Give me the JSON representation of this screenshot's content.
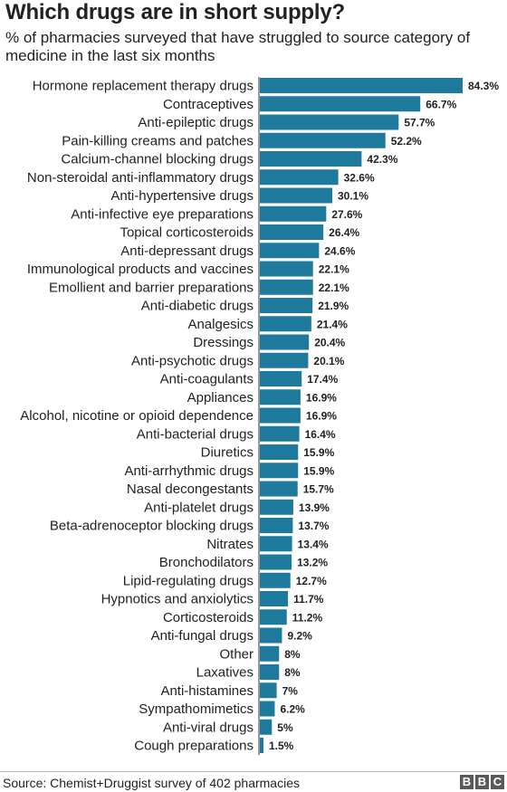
{
  "title": "Which drugs are in short supply?",
  "subtitle": "% of pharmacies surveyed that have struggled to source category of medicine in the last six months",
  "source": "Source: Chemist+Druggist survey of 402 pharmacies",
  "logo": [
    "B",
    "B",
    "C"
  ],
  "colors": {
    "bar": "#1d7a9c",
    "text": "#222222"
  },
  "chart_data": {
    "type": "bar",
    "orientation": "horizontal",
    "value_suffix": "%",
    "xlim": [
      0,
      84.3
    ],
    "categories": [
      "Hormone replacement therapy drugs",
      "Contraceptives",
      "Anti-epileptic drugs",
      "Pain-killing creams and patches",
      "Calcium-channel blocking drugs",
      "Non-steroidal anti-inflammatory drugs",
      "Anti-hypertensive drugs",
      "Anti-infective eye preparations",
      "Topical corticosteroids",
      "Anti-depressant drugs",
      "Immunological products and vaccines",
      "Emollient and barrier preparations",
      "Anti-diabetic drugs",
      "Analgesics",
      "Dressings",
      "Anti-psychotic drugs",
      "Anti-coagulants",
      "Appliances",
      "Alcohol, nicotine or opioid dependence",
      "Anti-bacterial drugs",
      "Diuretics",
      "Anti-arrhythmic drugs",
      "Nasal decongestants",
      "Anti-platelet drugs",
      "Beta-adrenoceptor blocking drugs",
      "Nitrates",
      "Bronchodilators",
      "Lipid-regulating drugs",
      "Hypnotics and anxiolytics",
      "Corticosteroids",
      "Anti-fungal drugs",
      "Other",
      "Laxatives",
      "Anti-histamines",
      "Sympathomimetics",
      "Anti-viral drugs",
      "Cough preparations"
    ],
    "values": [
      84.3,
      66.7,
      57.7,
      52.2,
      42.3,
      32.6,
      30.1,
      27.6,
      26.4,
      24.6,
      22.1,
      22.1,
      21.9,
      21.4,
      20.4,
      20.1,
      17.4,
      16.9,
      16.9,
      16.4,
      15.9,
      15.9,
      15.7,
      13.9,
      13.7,
      13.4,
      13.2,
      12.7,
      11.7,
      11.2,
      9.2,
      8,
      8,
      7,
      6.2,
      5,
      1.5
    ],
    "value_labels": [
      "84.3%",
      "66.7%",
      "57.7%",
      "52.2%",
      "42.3%",
      "32.6%",
      "30.1%",
      "27.6%",
      "26.4%",
      "24.6%",
      "22.1%",
      "22.1%",
      "21.9%",
      "21.4%",
      "20.4%",
      "20.1%",
      "17.4%",
      "16.9%",
      "16.9%",
      "16.4%",
      "15.9%",
      "15.9%",
      "15.7%",
      "13.9%",
      "13.7%",
      "13.4%",
      "13.2%",
      "12.7%",
      "11.7%",
      "11.2%",
      "9.2%",
      "8%",
      "8%",
      "7%",
      "6.2%",
      "5%",
      "1.5%"
    ],
    "grid": false,
    "legend": "none"
  }
}
